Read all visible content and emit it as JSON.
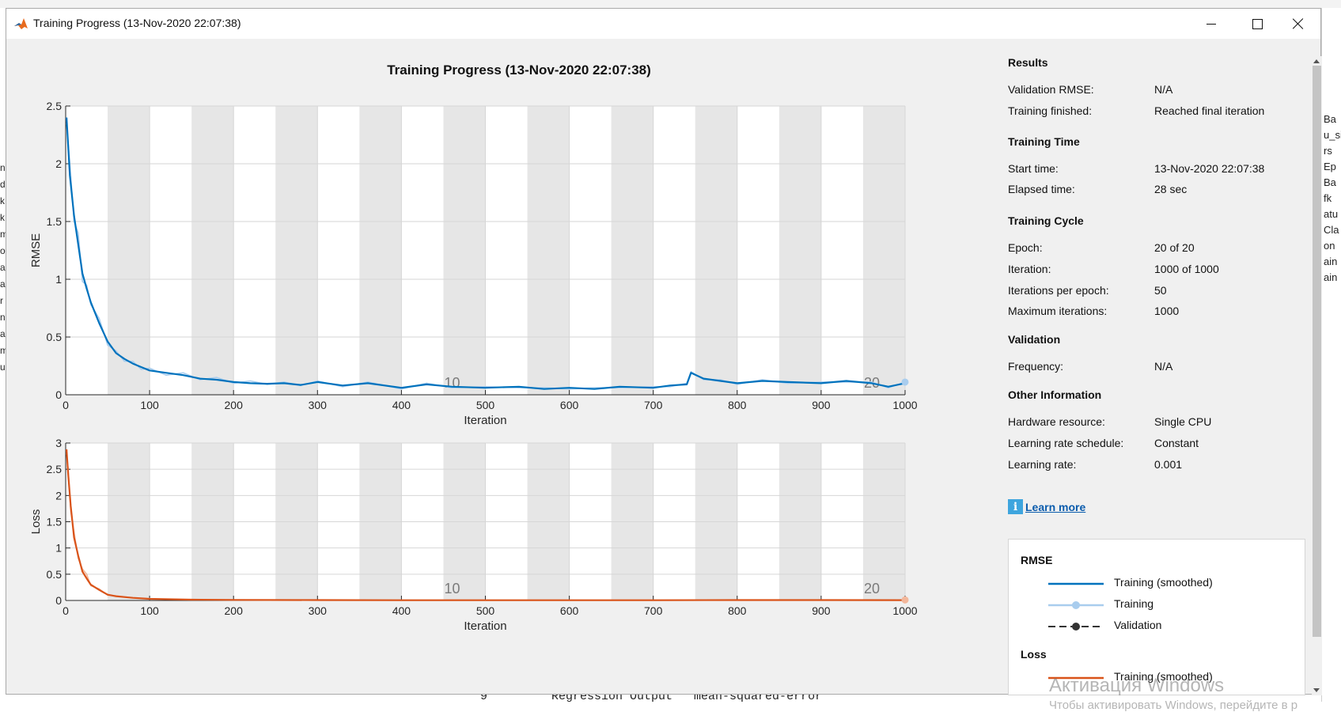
{
  "window": {
    "title": "Training Progress (13-Nov-2020 22:07:38)",
    "minimize_icon": "minimize-icon",
    "maximize_icon": "maximize-icon",
    "close_icon": "close-icon"
  },
  "plot_title": "Training Progress (13-Nov-2020 22:07:38)",
  "colors": {
    "rmse_smoothed": "#0072bd",
    "rmse_raw": "#a9cdee",
    "loss_smoothed": "#d95319",
    "loss_raw": "#f2b79b",
    "epoch_band": "#e6e6e6"
  },
  "results": {
    "heading": "Results",
    "rows": [
      {
        "label": "Validation RMSE:",
        "value": "N/A"
      },
      {
        "label": "Training finished:",
        "value": "Reached final iteration"
      }
    ]
  },
  "training_time": {
    "heading": "Training Time",
    "rows": [
      {
        "label": "Start time:",
        "value": "13-Nov-2020 22:07:38"
      },
      {
        "label": "Elapsed time:",
        "value": "28 sec"
      }
    ]
  },
  "training_cycle": {
    "heading": "Training Cycle",
    "rows": [
      {
        "label": "Epoch:",
        "value": "20 of 20"
      },
      {
        "label": "Iteration:",
        "value": "1000 of 1000"
      },
      {
        "label": "Iterations per epoch:",
        "value": "50"
      },
      {
        "label": "Maximum iterations:",
        "value": "1000"
      }
    ]
  },
  "validation": {
    "heading": "Validation",
    "rows": [
      {
        "label": "Frequency:",
        "value": "N/A"
      }
    ]
  },
  "other_info": {
    "heading": "Other Information",
    "rows": [
      {
        "label": "Hardware resource:",
        "value": "Single CPU"
      },
      {
        "label": "Learning rate schedule:",
        "value": "Constant"
      },
      {
        "label": "Learning rate:",
        "value": "0.001"
      }
    ]
  },
  "learn_more": {
    "icon": "info-icon",
    "label": "Learn more"
  },
  "legend": {
    "rmse_heading": "RMSE",
    "rmse_items": [
      "Training (smoothed)",
      "Training",
      "Validation"
    ],
    "loss_heading": "Loss",
    "loss_items": [
      "Training (smoothed)"
    ]
  },
  "watermark": {
    "line1": "Активация Windows",
    "line2": "Чтобы активировать Windows, перейдите в р"
  },
  "background": {
    "bottom_text": "9         Regression Output   mean-squared-error",
    "right_fragments": [
      "Ba",
      "u_si",
      "rs",
      "Ep",
      "Ba",
      "fk",
      "atu",
      "Cla",
      "on",
      "ain",
      "ain"
    ],
    "left_fragments": [
      "n",
      "da",
      "k",
      "k",
      "m",
      "ol",
      "a",
      "a",
      "r",
      "n",
      "a",
      "m",
      "u"
    ]
  },
  "chart_data": [
    {
      "type": "line",
      "ylabel": "RMSE",
      "xlabel": "Iteration",
      "xlim": [
        0,
        1000
      ],
      "ylim": [
        0,
        2.5
      ],
      "xticks": [
        0,
        100,
        200,
        300,
        400,
        500,
        600,
        700,
        800,
        900,
        1000
      ],
      "yticks": [
        0,
        0.5,
        1,
        1.5,
        2,
        2.5
      ],
      "epoch_markers": [
        {
          "label": "10",
          "x": 500
        },
        {
          "label": "20",
          "x": 1000
        }
      ],
      "epochs": 20,
      "iterations_per_epoch": 50,
      "series": [
        {
          "name": "Training (smoothed)",
          "x": [
            1,
            5,
            10,
            15,
            20,
            25,
            30,
            40,
            50,
            60,
            70,
            80,
            90,
            100,
            120,
            140,
            160,
            180,
            200,
            220,
            240,
            260,
            280,
            300,
            330,
            360,
            400,
            430,
            460,
            500,
            540,
            570,
            600,
            630,
            660,
            700,
            720,
            740,
            745,
            760,
            780,
            800,
            830,
            860,
            900,
            930,
            960,
            980,
            1000
          ],
          "values": [
            2.4,
            1.9,
            1.55,
            1.3,
            1.05,
            0.92,
            0.8,
            0.62,
            0.46,
            0.36,
            0.31,
            0.27,
            0.24,
            0.21,
            0.19,
            0.17,
            0.14,
            0.13,
            0.11,
            0.1,
            0.095,
            0.1,
            0.085,
            0.11,
            0.08,
            0.1,
            0.06,
            0.09,
            0.07,
            0.06,
            0.07,
            0.05,
            0.06,
            0.05,
            0.07,
            0.06,
            0.08,
            0.09,
            0.19,
            0.14,
            0.12,
            0.1,
            0.12,
            0.11,
            0.1,
            0.12,
            0.1,
            0.07,
            0.1
          ]
        },
        {
          "name": "Training",
          "x": [
            1,
            5,
            10,
            15,
            20,
            25,
            30,
            40,
            50,
            60,
            70,
            80,
            90,
            100,
            120,
            140,
            160,
            180,
            200,
            220,
            240,
            260,
            280,
            300,
            330,
            360,
            400,
            430,
            460,
            500,
            540,
            570,
            600,
            630,
            660,
            700,
            720,
            740,
            745,
            760,
            780,
            800,
            830,
            860,
            900,
            930,
            960,
            980,
            1000
          ],
          "values": [
            2.35,
            2.0,
            1.5,
            1.4,
            0.98,
            0.95,
            0.78,
            0.66,
            0.43,
            0.38,
            0.29,
            0.29,
            0.22,
            0.23,
            0.17,
            0.19,
            0.13,
            0.15,
            0.1,
            0.12,
            0.09,
            0.11,
            0.08,
            0.12,
            0.07,
            0.11,
            0.05,
            0.1,
            0.06,
            0.07,
            0.06,
            0.06,
            0.05,
            0.06,
            0.06,
            0.07,
            0.07,
            0.1,
            0.2,
            0.13,
            0.13,
            0.09,
            0.13,
            0.1,
            0.11,
            0.11,
            0.11,
            0.06,
            0.11
          ]
        }
      ]
    },
    {
      "type": "line",
      "ylabel": "Loss",
      "xlabel": "Iteration",
      "xlim": [
        0,
        1000
      ],
      "ylim": [
        0,
        3
      ],
      "xticks": [
        0,
        100,
        200,
        300,
        400,
        500,
        600,
        700,
        800,
        900,
        1000
      ],
      "yticks": [
        0,
        0.5,
        1,
        1.5,
        2,
        2.5,
        3
      ],
      "epoch_markers": [
        {
          "label": "10",
          "x": 500
        },
        {
          "label": "20",
          "x": 1000
        }
      ],
      "epochs": 20,
      "iterations_per_epoch": 50,
      "series": [
        {
          "name": "Training (smoothed)",
          "x": [
            1,
            3,
            6,
            10,
            15,
            20,
            25,
            30,
            40,
            50,
            60,
            80,
            100,
            150,
            200,
            300,
            400,
            500,
            600,
            700,
            800,
            900,
            1000
          ],
          "values": [
            2.88,
            2.4,
            1.8,
            1.2,
            0.85,
            0.55,
            0.42,
            0.3,
            0.2,
            0.11,
            0.08,
            0.05,
            0.03,
            0.015,
            0.01,
            0.008,
            0.005,
            0.004,
            0.004,
            0.004,
            0.008,
            0.008,
            0.006
          ]
        },
        {
          "name": "Training",
          "x": [
            1,
            3,
            6,
            10,
            15,
            20,
            25,
            30,
            40,
            50,
            60,
            80,
            100,
            150,
            200,
            300,
            400,
            500,
            600,
            700,
            800,
            900,
            1000
          ],
          "values": [
            2.8,
            2.5,
            1.7,
            1.3,
            0.8,
            0.6,
            0.5,
            0.28,
            0.22,
            0.1,
            0.09,
            0.05,
            0.03,
            0.015,
            0.01,
            0.008,
            0.005,
            0.004,
            0.004,
            0.004,
            0.008,
            0.008,
            0.01
          ]
        }
      ]
    }
  ]
}
